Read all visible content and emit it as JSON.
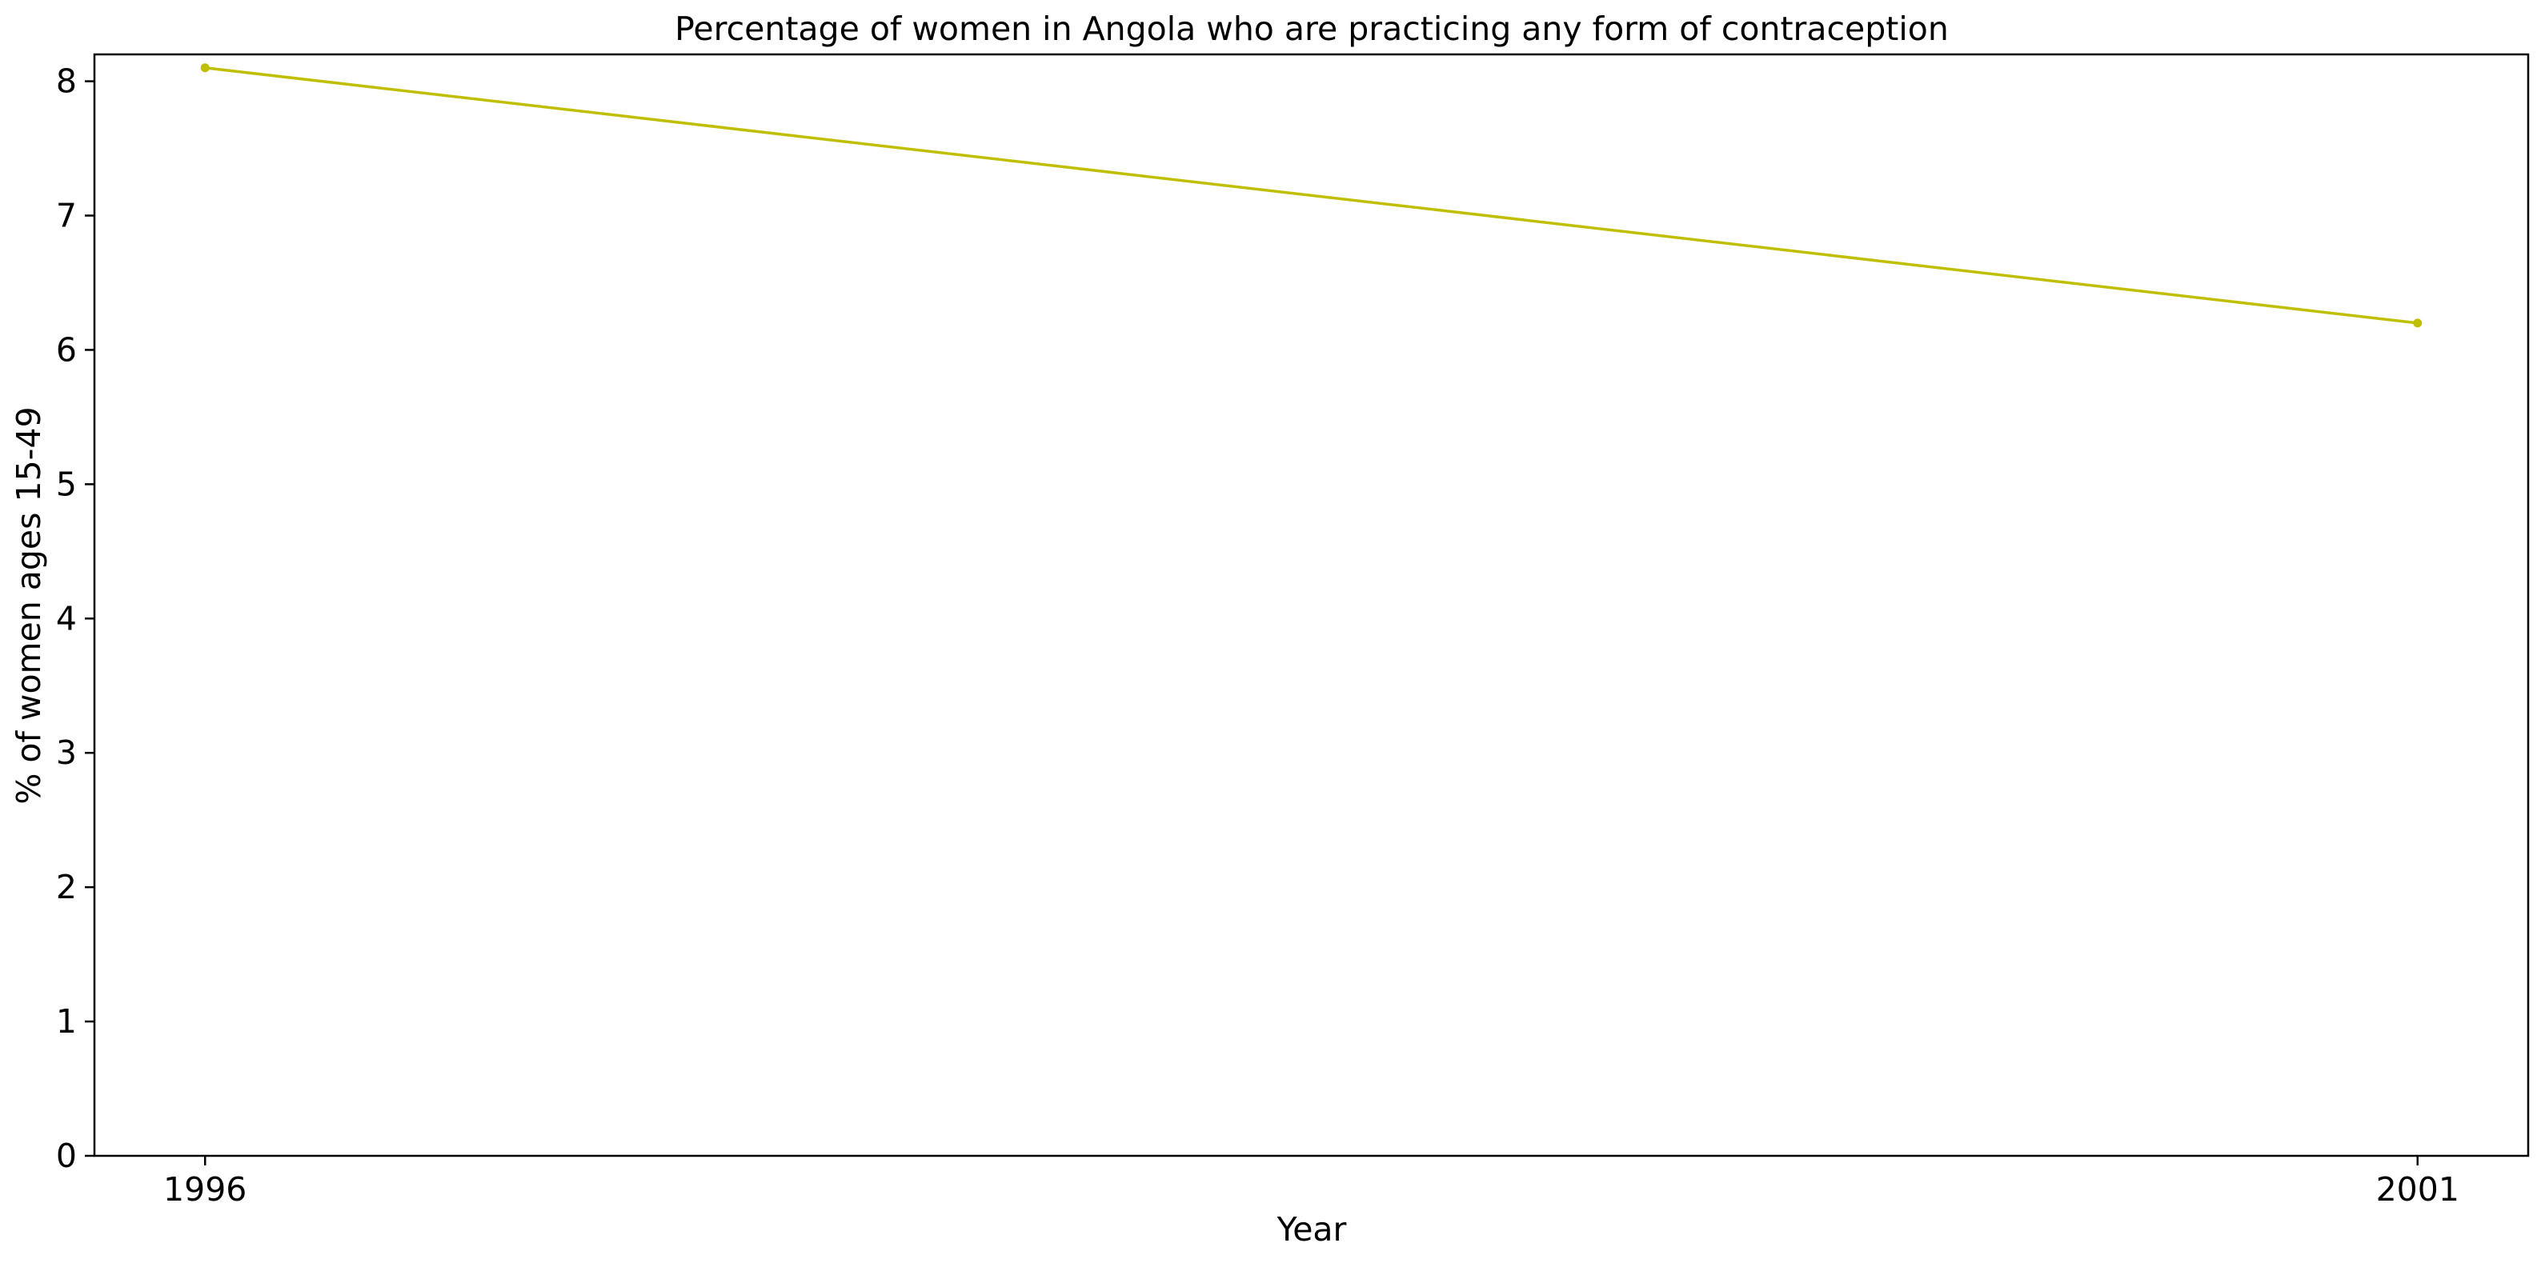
{
  "chart_data": {
    "type": "line",
    "title": "Percentage of women in Angola who are practicing any form of contraception",
    "xlabel": "Year",
    "ylabel": "% of women ages 15-49",
    "x": [
      1996,
      2001
    ],
    "x_tick_labels": [
      "1996",
      "2001"
    ],
    "y_ticks": [
      0,
      1,
      2,
      3,
      4,
      5,
      6,
      7,
      8
    ],
    "y_tick_labels": [
      "0",
      "1",
      "2",
      "3",
      "4",
      "5",
      "6",
      "7",
      "8"
    ],
    "ylim": [
      0,
      8.2
    ],
    "xlim": [
      1995.75,
      2001.25
    ],
    "series": [
      {
        "values": [
          8.1,
          6.2
        ],
        "color": "#bfbf00",
        "marker": "circle"
      }
    ],
    "grid": false,
    "legend": "none"
  }
}
